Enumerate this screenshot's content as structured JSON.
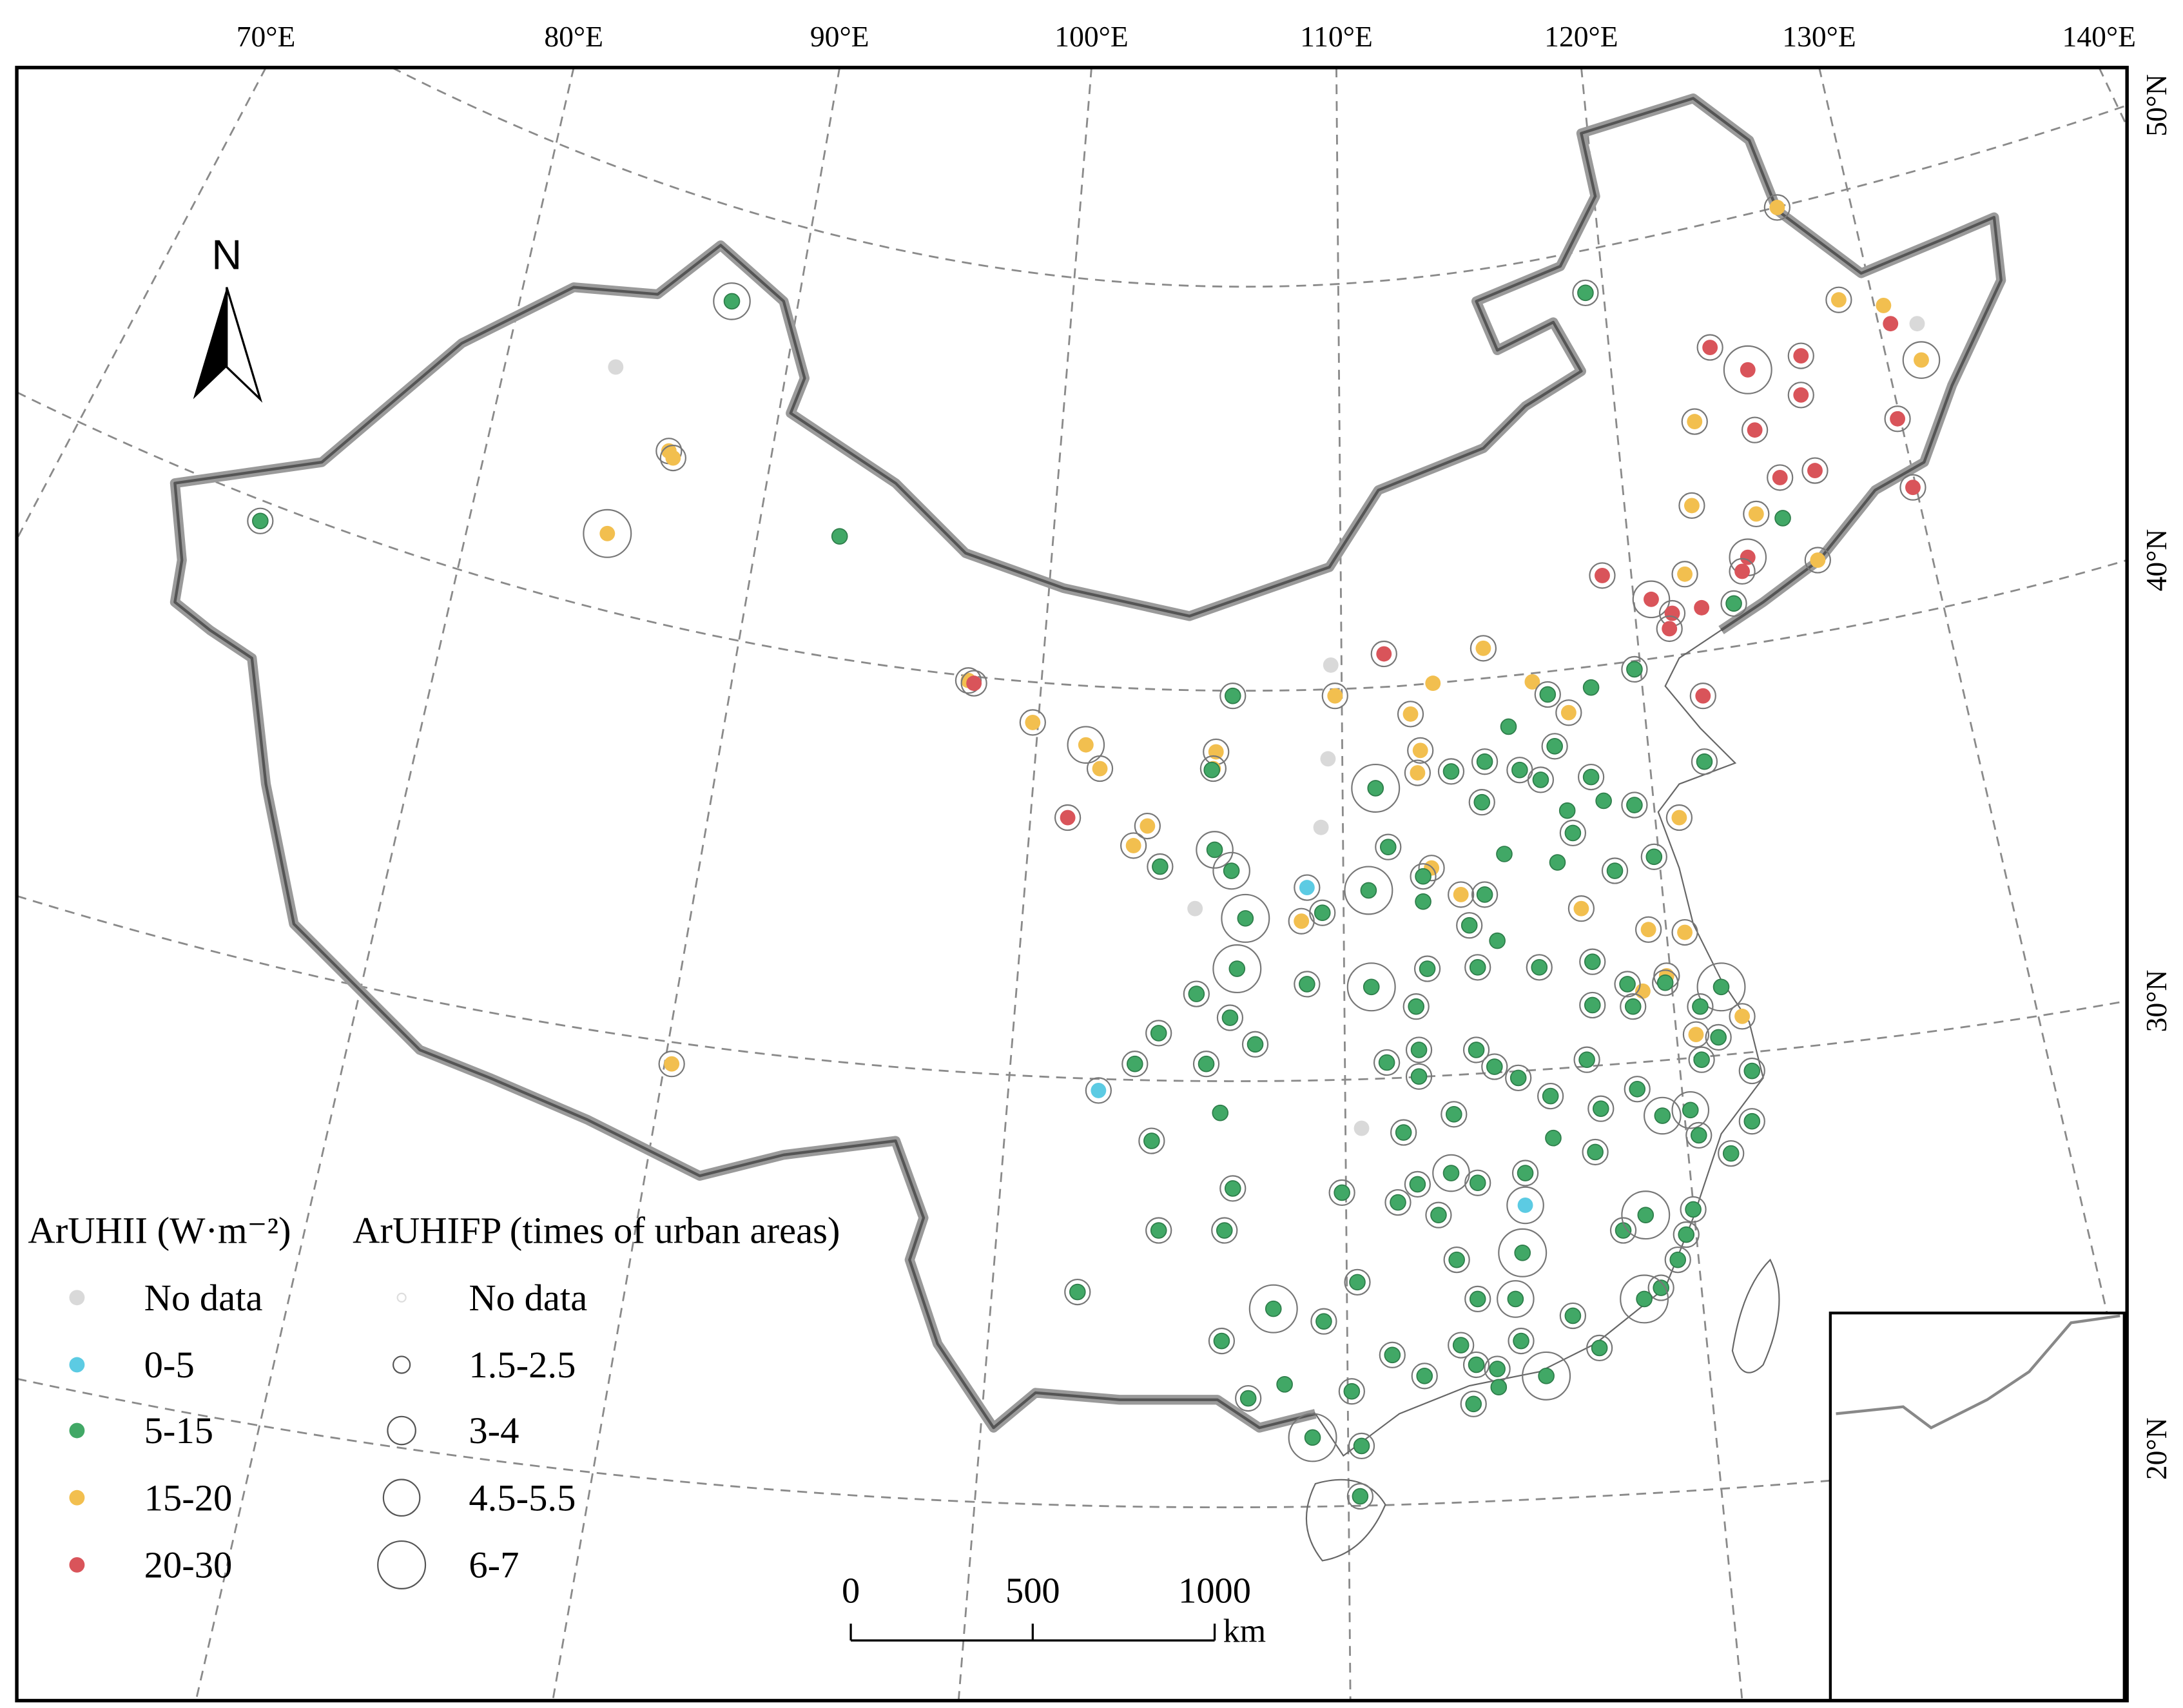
{
  "map": {
    "lon_labels": [
      "70°E",
      "80°E",
      "90°E",
      "100°E",
      "110°E",
      "120°E",
      "130°E",
      "140°E"
    ],
    "lat_labels": [
      "50°N",
      "40°N",
      "30°N",
      "20°N"
    ],
    "north": "N",
    "legend_heat": {
      "title": "ArUHII (W·m⁻²)",
      "items": [
        {
          "label": "No data",
          "color": "#d9d9d9"
        },
        {
          "label": "0-5",
          "color": "#5ccbe3"
        },
        {
          "label": "5-15",
          "color": "#41a866"
        },
        {
          "label": "15-20",
          "color": "#f2bf4f"
        },
        {
          "label": "20-30",
          "color": "#d9545a"
        }
      ]
    },
    "legend_footprint": {
      "title": "ArUHIFP (times of urban areas)",
      "items": [
        "No data",
        "1.5-2.5",
        "3-4",
        "4.5-5.5",
        "6-7"
      ]
    },
    "scale_bar": {
      "labels": [
        "0",
        "500",
        "1000"
      ],
      "unit": "km"
    }
  }
}
